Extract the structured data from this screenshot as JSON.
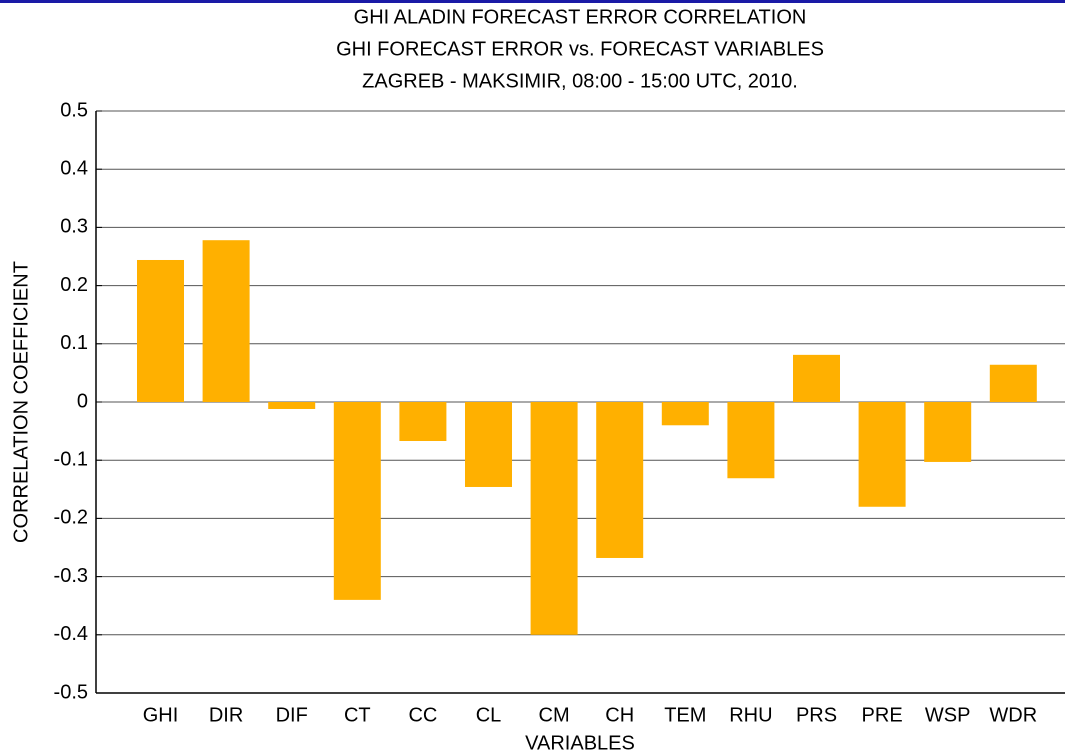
{
  "chart_data": {
    "type": "bar",
    "title": [
      "GHI ALADIN FORECAST ERROR CORRELATION",
      "GHI FORECAST ERROR vs. FORECAST VARIABLES",
      "ZAGREB - MAKSIMIR, 08:00 - 15:00 UTC, 2010."
    ],
    "xlabel": "VARIABLES",
    "ylabel": "CORRELATION COEFFICIENT",
    "categories": [
      "GHI",
      "DIR",
      "DIF",
      "CT",
      "CC",
      "CL",
      "CM",
      "CH",
      "TEM",
      "RHU",
      "PRS",
      "PRE",
      "WSP",
      "WDR"
    ],
    "values": [
      0.244,
      0.278,
      -0.012,
      -0.34,
      -0.067,
      -0.146,
      -0.4,
      -0.268,
      -0.04,
      -0.131,
      0.081,
      -0.18,
      -0.103,
      0.064
    ],
    "color": "#ffb000",
    "ylim": [
      -0.5,
      0.5
    ],
    "yticks": [
      -0.5,
      -0.4,
      -0.3,
      -0.2,
      -0.1,
      0,
      0.1,
      0.2,
      0.3,
      0.4,
      0.5
    ],
    "grid": true
  }
}
